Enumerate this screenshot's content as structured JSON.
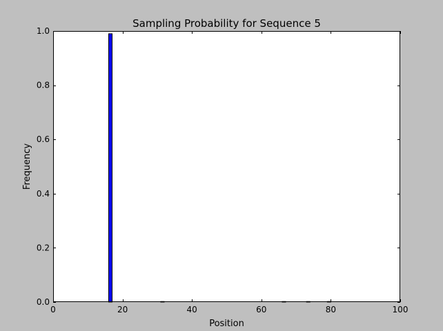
{
  "chart_data": {
    "type": "bar",
    "title": "Sampling Probability for Sequence 5",
    "xlabel": "Position",
    "ylabel": "Frequency",
    "xlim": [
      0,
      100
    ],
    "ylim": [
      0,
      1.0
    ],
    "xticks": [
      "0",
      "20",
      "40",
      "60",
      "80",
      "100"
    ],
    "yticks": [
      "0.0",
      "0.2",
      "0.4",
      "0.6",
      "0.8",
      "1.0"
    ],
    "bar_width": 1,
    "x": [
      16,
      31,
      66,
      73,
      79
    ],
    "values": [
      0.99,
      0.002,
      0.002,
      0.002,
      0.002
    ],
    "bar_color": "#0000ff",
    "edge_color": "#000000",
    "grid": false,
    "legend": "none"
  }
}
